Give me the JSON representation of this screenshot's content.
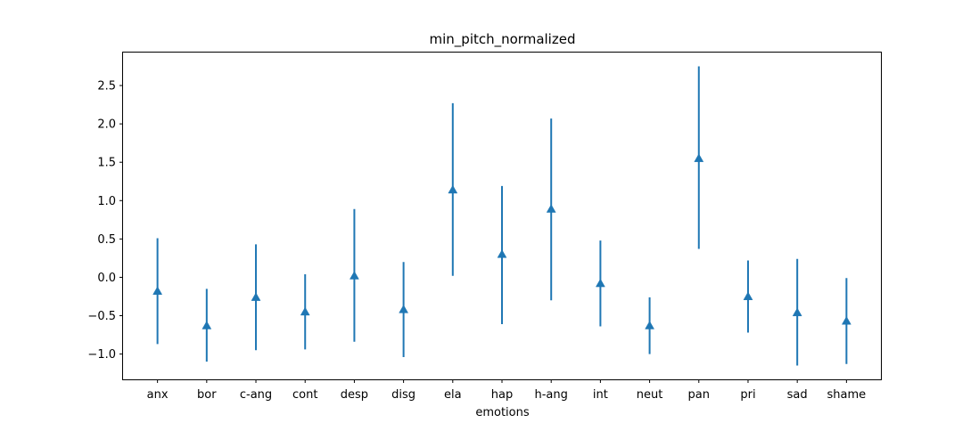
{
  "chart_data": {
    "type": "errorbar",
    "title": "min_pitch_normalized",
    "xlabel": "emotions",
    "ylabel": "",
    "categories": [
      "anx",
      "bor",
      "c-ang",
      "cont",
      "desp",
      "disg",
      "ela",
      "hap",
      "h-ang",
      "int",
      "neut",
      "pan",
      "pri",
      "sad",
      "shame"
    ],
    "series": [
      {
        "marker": "triangle-up",
        "color": "#1f77b4",
        "values": [
          -0.18,
          -0.63,
          -0.26,
          -0.45,
          0.02,
          -0.42,
          1.14,
          0.3,
          0.89,
          -0.08,
          -0.63,
          1.55,
          -0.25,
          -0.46,
          -0.57
        ],
        "lower": [
          -0.87,
          -1.1,
          -0.95,
          -0.94,
          -0.84,
          -1.04,
          0.02,
          -0.61,
          -0.3,
          -0.64,
          -1.0,
          0.37,
          -0.72,
          -1.15,
          -1.13
        ],
        "upper": [
          0.51,
          -0.15,
          0.43,
          0.04,
          0.89,
          0.2,
          2.27,
          1.19,
          2.07,
          0.48,
          -0.26,
          2.75,
          0.22,
          0.24,
          -0.01
        ]
      }
    ],
    "ylim": [
      -1.33,
      2.93
    ],
    "yticks": [
      -1.0,
      -0.5,
      0.0,
      0.5,
      1.0,
      1.5,
      2.0,
      2.5
    ],
    "ytick_labels": [
      "−1.0",
      "−0.5",
      "0.0",
      "0.5",
      "1.0",
      "1.5",
      "2.0",
      "2.5"
    ],
    "grid": false,
    "legend": "none"
  }
}
